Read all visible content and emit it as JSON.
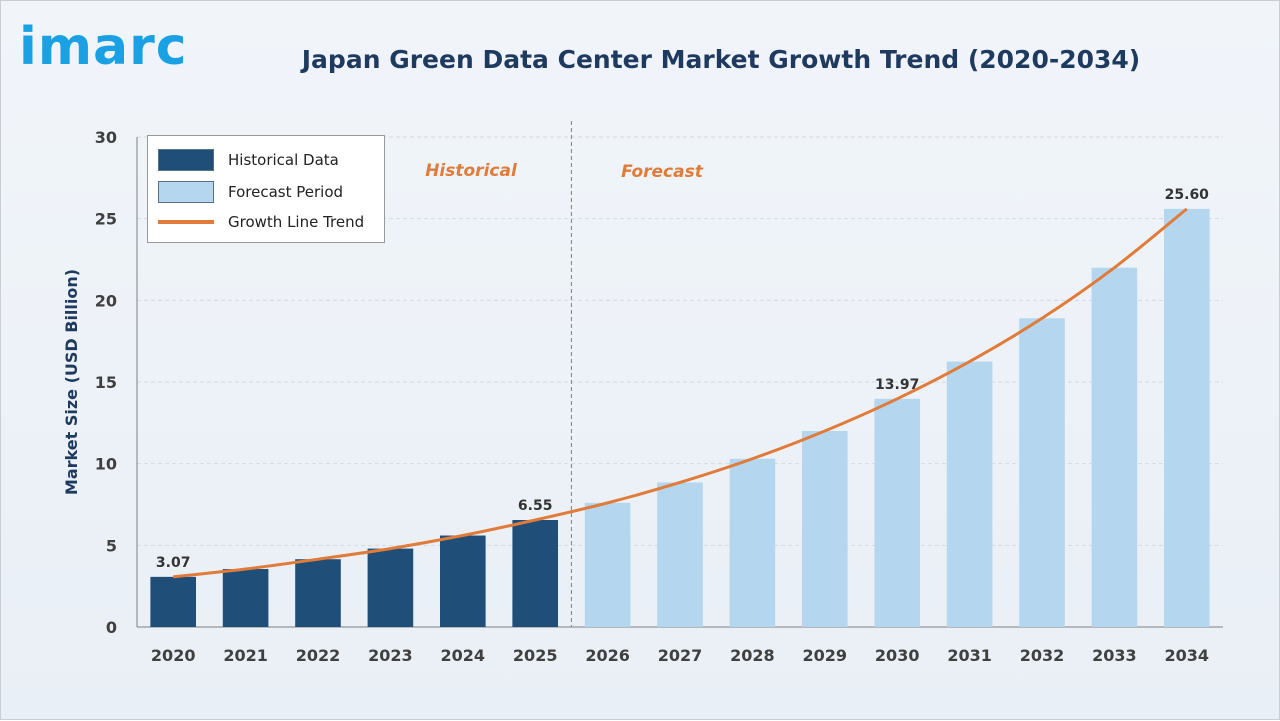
{
  "brand": {
    "logo_text": "imarc"
  },
  "chart_data": {
    "type": "bar",
    "title": "Japan Green Data Center Market Growth Trend (2020-2034)",
    "ylabel": "Market Size (USD Billion)",
    "xlabel": "",
    "ylim": [
      0,
      30
    ],
    "yticks": [
      0,
      5,
      10,
      15,
      20,
      25,
      30
    ],
    "categories": [
      "2020",
      "2021",
      "2022",
      "2023",
      "2024",
      "2025",
      "2026",
      "2027",
      "2028",
      "2029",
      "2030",
      "2031",
      "2032",
      "2033",
      "2034"
    ],
    "values": [
      3.07,
      3.55,
      4.15,
      4.8,
      5.6,
      6.55,
      7.6,
      8.85,
      10.3,
      12.0,
      13.97,
      16.25,
      18.9,
      22.0,
      25.6
    ],
    "historical_count": 6,
    "data_labels": [
      {
        "category": "2020",
        "text": "3.07"
      },
      {
        "category": "2025",
        "text": "6.55"
      },
      {
        "category": "2030",
        "text": "13.97"
      },
      {
        "category": "2034",
        "text": "25.60"
      }
    ],
    "sections": {
      "historical": "Historical",
      "forecast": "Forecast"
    },
    "legend": {
      "placement": "top-left",
      "items": [
        {
          "label": "Historical Data",
          "kind": "bar",
          "color": "#1f4e79"
        },
        {
          "label": "Forecast Period",
          "kind": "bar",
          "color": "#b4d7ef"
        },
        {
          "label": "Growth Line Trend",
          "kind": "line",
          "color": "#e07b39"
        }
      ]
    },
    "grid": true,
    "colors": {
      "historical": "#1f4e79",
      "forecast": "#b4d7ef",
      "trend": "#e07b39",
      "section_text": "#e07b39"
    }
  }
}
